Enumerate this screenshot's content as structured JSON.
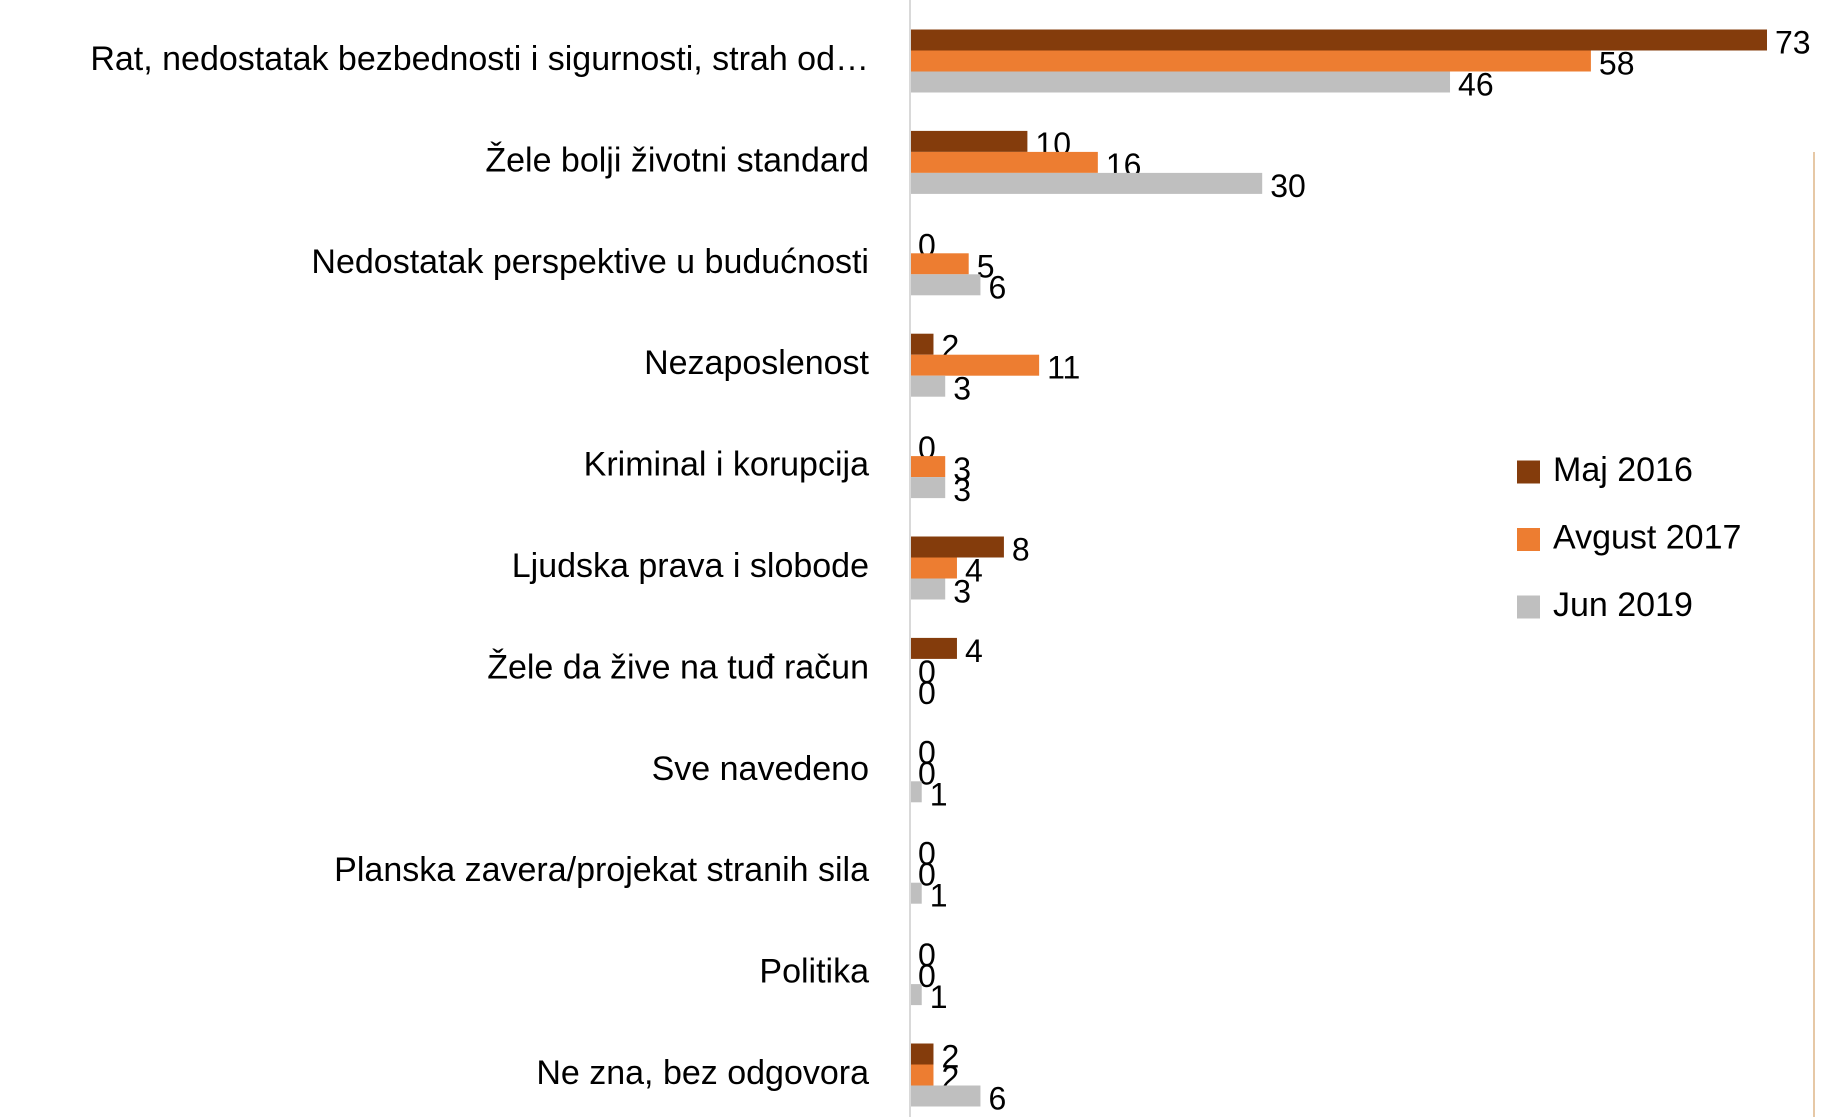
{
  "chart_data": {
    "type": "hbar",
    "categories": [
      "Rat, nedostatak bezbednosti i sigurnosti, strah od…",
      "Žele bolji životni standard",
      "Nedostatak perspektive u budućnosti",
      "Nezaposlenost",
      "Kriminal i korupcija",
      "Ljudska prava i slobode",
      "Žele da žive na tuđ račun",
      "Sve navedeno",
      "Planska zavera/projekat stranih sila",
      "Politika",
      "Ne zna, bez odgovora"
    ],
    "series": [
      {
        "name": "Maj 2016",
        "color": "#843c0c",
        "values": [
          73,
          10,
          0,
          2,
          0,
          8,
          4,
          0,
          0,
          0,
          2
        ]
      },
      {
        "name": "Avgust 2017",
        "color": "#ed7d31",
        "values": [
          58,
          16,
          5,
          11,
          3,
          4,
          0,
          0,
          0,
          0,
          2
        ]
      },
      {
        "name": "Jun 2019",
        "color": "#bfbfbf",
        "values": [
          46,
          30,
          6,
          3,
          3,
          3,
          0,
          1,
          1,
          1,
          6
        ]
      }
    ],
    "xlim": [
      0,
      73
    ],
    "legend": "right"
  }
}
